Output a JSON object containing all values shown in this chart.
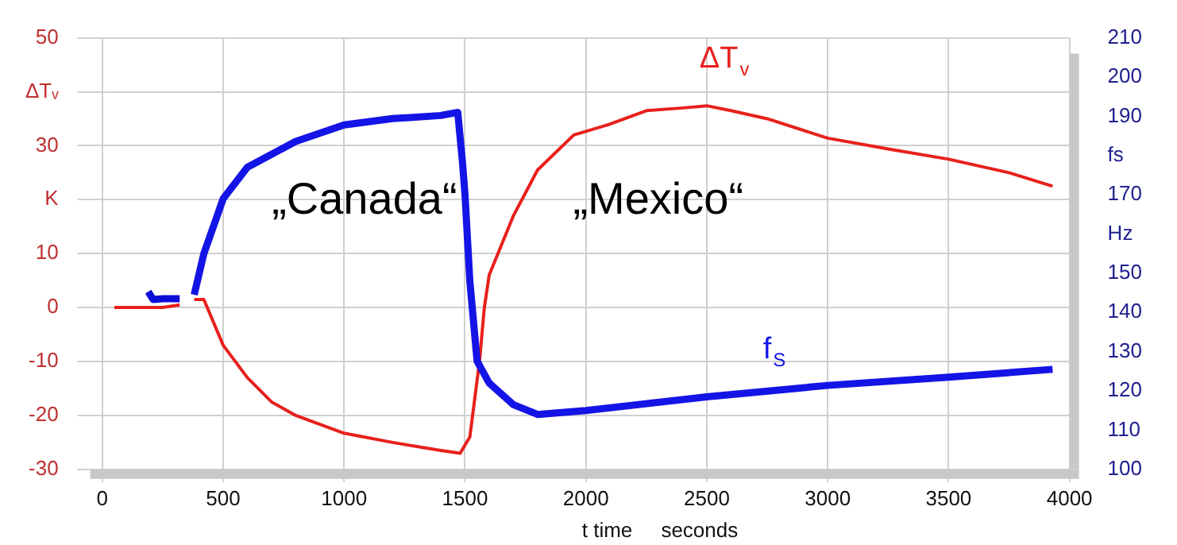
{
  "chart_data": {
    "type": "line",
    "xlabel": "t time     seconds",
    "legend": false,
    "grid": true,
    "marker": "none",
    "line_style": "solid",
    "xlim": [
      -50,
      4000
    ],
    "xticks": [
      0,
      500,
      1000,
      1500,
      2000,
      2500,
      3000,
      3500,
      4000
    ],
    "ylim": [
      -30,
      50
    ],
    "yticks": [
      -30,
      -20,
      -10,
      0,
      10,
      {
        "value": 20,
        "label": "K"
      },
      30,
      {
        "value": 40,
        "label": "ΔTᵥ"
      },
      50
    ],
    "y2lim": [
      100,
      210
    ],
    "y2ticks": [
      100,
      110,
      120,
      130,
      140,
      150,
      {
        "value": 160,
        "label": "Hz"
      },
      170,
      {
        "value": 180,
        "label": "fs"
      },
      190,
      200,
      210
    ],
    "annotations": [
      "„Canada“",
      "„Mexico“"
    ],
    "series": [
      {
        "name": "ΔT$_{v}$",
        "color": "#e8201c",
        "x": [
          50,
          150,
          250,
          320,
          350,
          380,
          420,
          500,
          600,
          700,
          800,
          1000,
          1200,
          1400,
          1480,
          1520,
          1560,
          1580,
          1600,
          1700,
          1800,
          1950,
          2100,
          2250,
          2400,
          2500,
          2600,
          2750,
          3000,
          3250,
          3500,
          3750,
          3930
        ],
        "values": [
          0,
          0,
          0,
          0.5,
          null,
          1.5,
          1.5,
          -7,
          -13,
          -17.5,
          -20,
          -23.3,
          -25,
          -26.5,
          -27,
          -24,
          -10,
          0,
          6,
          17,
          25.5,
          32,
          34,
          36.5,
          37,
          37.4,
          36.5,
          35,
          31.4,
          29.4,
          27.5,
          25,
          22.5
        ]
      },
      {
        "color": "#0c0cd8",
        "axis": "y2",
        "x": [
          190,
          210,
          250,
          320
        ],
        "values": [
          145.3,
          143.3,
          143.5,
          143.5
        ]
      },
      {
        "name": "f$_{S}$",
        "color": "#1414e6",
        "axis": "y2",
        "x": [
          380,
          420,
          500,
          600,
          700,
          800,
          1000,
          1200,
          1400,
          1470,
          1490,
          1500,
          1520,
          1550,
          1600,
          1700,
          1800,
          2000,
          2500,
          3000,
          3500,
          3930
        ],
        "values": [
          144.5,
          155,
          169,
          177,
          180.3,
          183.6,
          187.8,
          189.4,
          190.2,
          191,
          178,
          170,
          148,
          127.6,
          122,
          116.5,
          114,
          115,
          118.5,
          121.4,
          123.5,
          125.5
        ]
      }
    ]
  }
}
